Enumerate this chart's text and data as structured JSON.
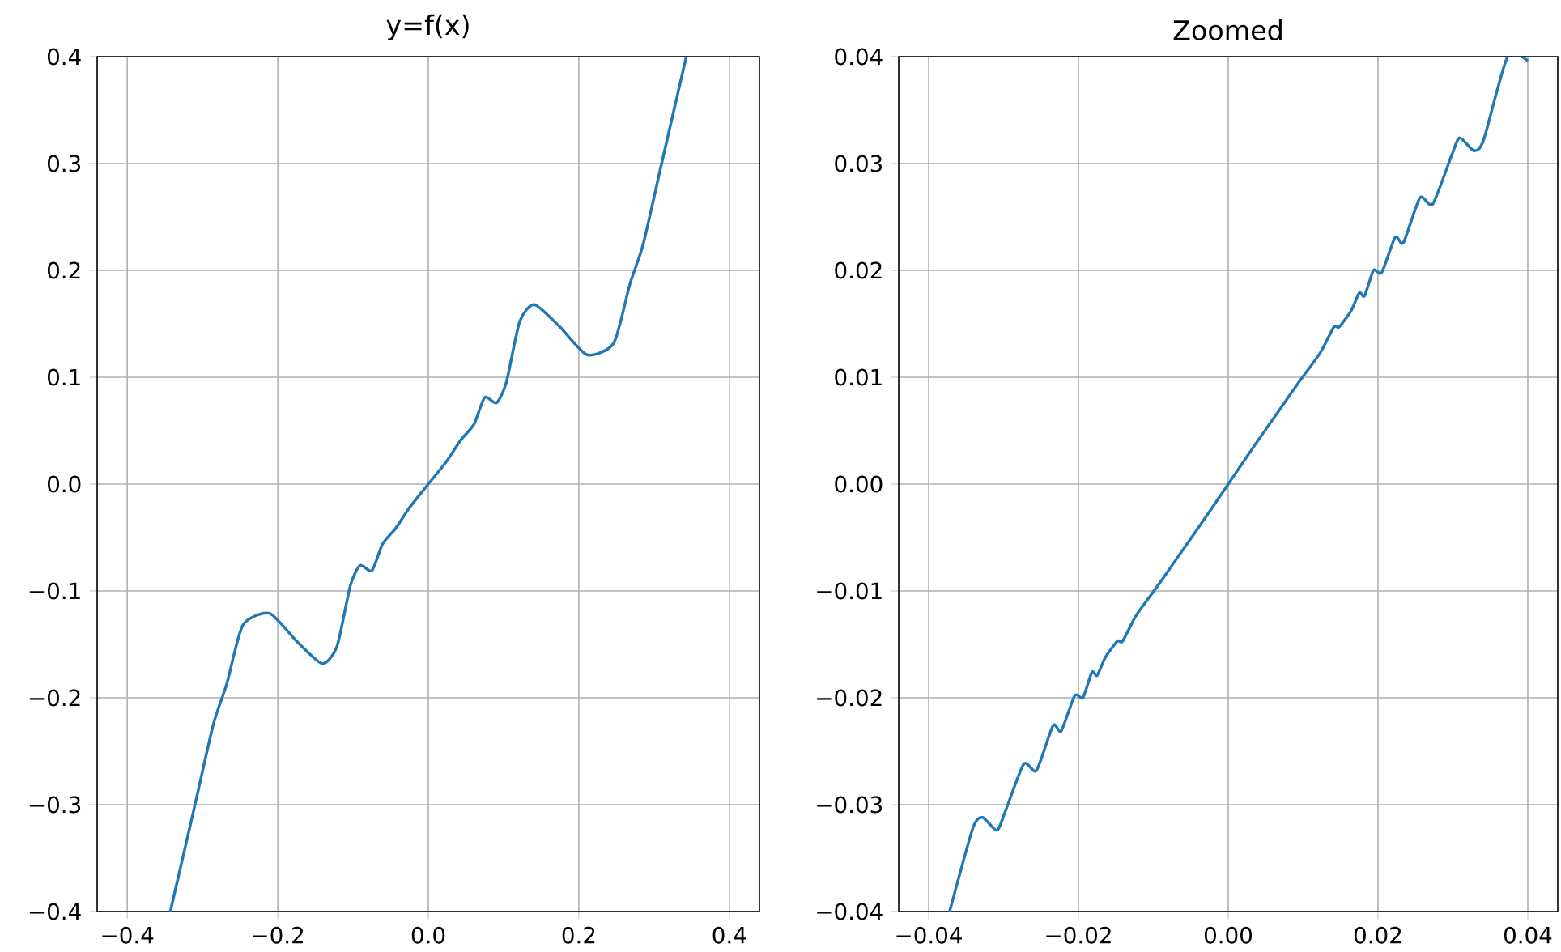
{
  "chart_data": [
    {
      "type": "line",
      "title": "y=f(x)",
      "grid": true,
      "xlim": [
        -0.44,
        0.44
      ],
      "ylim": [
        -0.4,
        0.4
      ],
      "xticks": [
        {
          "value": -0.4,
          "label": "−0.4"
        },
        {
          "value": -0.2,
          "label": "−0.2"
        },
        {
          "value": 0,
          "label": "0.0"
        },
        {
          "value": 0.2,
          "label": "0.2"
        },
        {
          "value": 0.4,
          "label": "0.4"
        }
      ],
      "yticks": [
        {
          "value": -0.4,
          "label": "−0.4"
        },
        {
          "value": -0.3,
          "label": "−0.3"
        },
        {
          "value": -0.2,
          "label": "−0.2"
        },
        {
          "value": -0.1,
          "label": "−0.1"
        },
        {
          "value": 0,
          "label": "0.0"
        },
        {
          "value": 0.1,
          "label": "0.1"
        },
        {
          "value": 0.2,
          "label": "0.2"
        },
        {
          "value": 0.3,
          "label": "0.3"
        },
        {
          "value": 0.4,
          "label": "0.4"
        }
      ],
      "series": [
        {
          "color": "#1f77b4",
          "x": [
            -0.3428,
            -0.31,
            -0.2857,
            -0.2678,
            -0.2464,
            -0.211,
            -0.175,
            -0.141,
            -0.1214,
            -0.1036,
            -0.0907,
            -0.075,
            -0.0607,
            -0.0429,
            -0.025,
            0,
            0.025,
            0.0429,
            0.0607,
            0.075,
            0.0907,
            0.1036,
            0.1214,
            0.141,
            0.175,
            0.211,
            0.2464,
            0.2678,
            0.2857,
            0.31,
            0.3428
          ],
          "values": [
            -0.4,
            -0.3,
            -0.225,
            -0.187,
            -0.132,
            -0.121,
            -0.147,
            -0.168,
            -0.152,
            -0.095,
            -0.076,
            -0.081,
            -0.056,
            -0.041,
            -0.022,
            0,
            0.022,
            0.041,
            0.056,
            0.081,
            0.076,
            0.095,
            0.152,
            0.168,
            0.147,
            0.121,
            0.132,
            0.187,
            0.225,
            0.3,
            0.4
          ]
        }
      ]
    },
    {
      "type": "line",
      "title": "Zoomed",
      "grid": true,
      "xlim": [
        -0.044,
        0.044
      ],
      "ylim": [
        -0.04,
        0.04
      ],
      "xticks": [
        {
          "value": -0.04,
          "label": "−0.04"
        },
        {
          "value": -0.02,
          "label": "−0.02"
        },
        {
          "value": 0,
          "label": "0.00"
        },
        {
          "value": 0.02,
          "label": "0.02"
        },
        {
          "value": 0.04,
          "label": "0.04"
        }
      ],
      "yticks": [
        {
          "value": -0.04,
          "label": "−0.04"
        },
        {
          "value": -0.03,
          "label": "−0.03"
        },
        {
          "value": -0.02,
          "label": "−0.02"
        },
        {
          "value": -0.01,
          "label": "−0.01"
        },
        {
          "value": 0,
          "label": "0.00"
        },
        {
          "value": 0.01,
          "label": "0.01"
        },
        {
          "value": 0.02,
          "label": "0.02"
        },
        {
          "value": 0.03,
          "label": "0.03"
        },
        {
          "value": 0.04,
          "label": "0.04"
        }
      ],
      "series": [
        {
          "color": "#1f77b4",
          "x": [
            -0.0372,
            -0.0341,
            -0.0328,
            -0.0309,
            -0.0298,
            -0.0273,
            -0.0256,
            -0.0234,
            -0.0223,
            -0.0205,
            -0.0194,
            -0.0182,
            -0.0175,
            -0.0164,
            -0.0148,
            -0.0141,
            -0.0123,
            -0.0094,
            -0.0069,
            -0.0036,
            0,
            0.0036,
            0.0069,
            0.0094,
            0.0123,
            0.0141,
            0.0148,
            0.0164,
            0.0175,
            0.0182,
            0.0194,
            0.0205,
            0.0223,
            0.0234,
            0.0256,
            0.0273,
            0.0298,
            0.0309,
            0.0328,
            0.0341,
            0.0373,
            0.04
          ],
          "values": [
            -0.04,
            -0.0322,
            -0.0312,
            -0.0324,
            -0.0307,
            -0.0262,
            -0.0268,
            -0.0226,
            -0.0231,
            -0.0198,
            -0.02,
            -0.0176,
            -0.0179,
            -0.0162,
            -0.0147,
            -0.0147,
            -0.0123,
            -0.0095,
            -0.007,
            -0.0037,
            0,
            0.0037,
            0.007,
            0.0095,
            0.0123,
            0.0147,
            0.0147,
            0.0162,
            0.0179,
            0.0176,
            0.02,
            0.0198,
            0.0231,
            0.0226,
            0.0268,
            0.0262,
            0.0307,
            0.0324,
            0.0312,
            0.0322,
            0.04,
            0.0396
          ]
        }
      ]
    }
  ]
}
